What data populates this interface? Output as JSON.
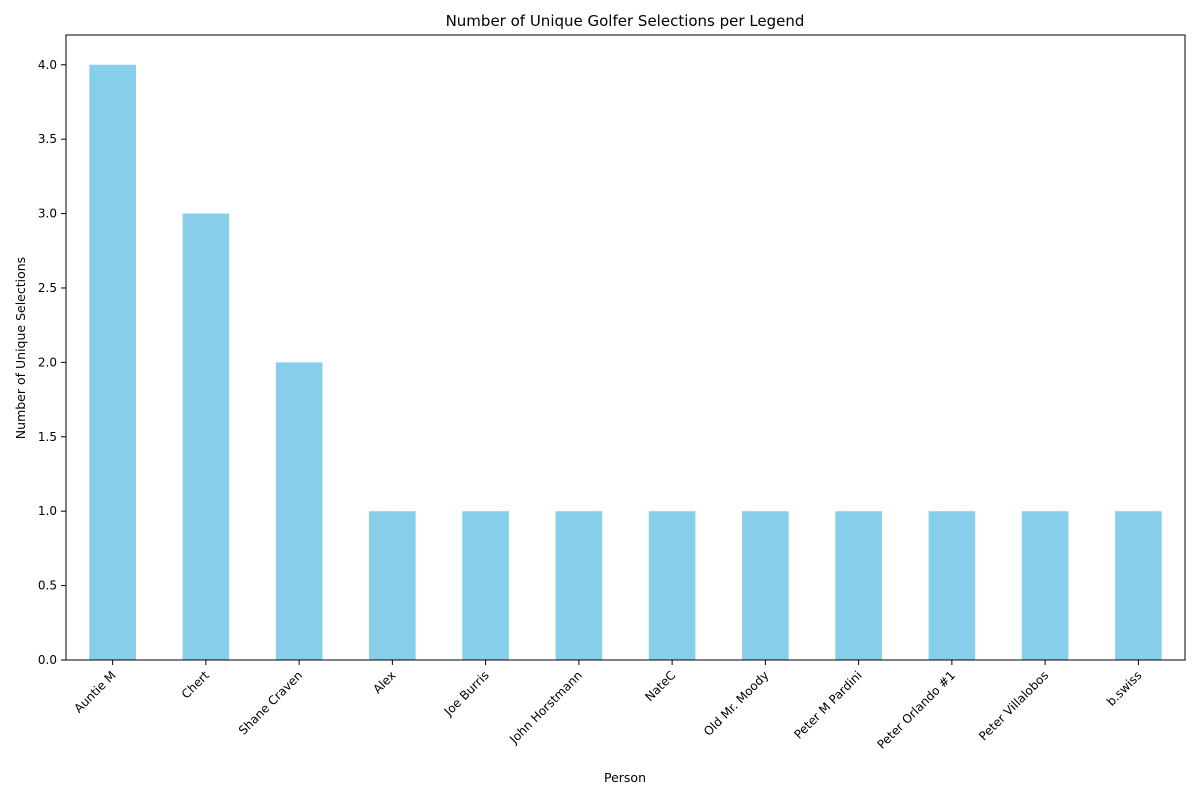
{
  "chart_data": {
    "type": "bar",
    "title": "Number of Unique Golfer Selections per Legend",
    "xlabel": "Person",
    "ylabel": "Number of Unique Selections",
    "categories": [
      "Auntie M",
      "Chert",
      "Shane Craven",
      "Alex",
      "Joe Burris",
      "John Horstmann",
      "NateC",
      "Old Mr. Moody",
      "Peter M Pardini",
      "Peter Orlando #1",
      "Peter Villalobos",
      "b.swiss"
    ],
    "values": [
      4,
      3,
      2,
      1,
      1,
      1,
      1,
      1,
      1,
      1,
      1,
      1
    ],
    "ylim": [
      0,
      4.2
    ],
    "yticks": [
      0.0,
      0.5,
      1.0,
      1.5,
      2.0,
      2.5,
      3.0,
      3.5,
      4.0
    ],
    "ytick_labels": [
      "0.0",
      "0.5",
      "1.0",
      "1.5",
      "2.0",
      "2.5",
      "3.0",
      "3.5",
      "4.0"
    ],
    "grid": false,
    "legend": "none",
    "bar_color": "#87CEEB"
  }
}
